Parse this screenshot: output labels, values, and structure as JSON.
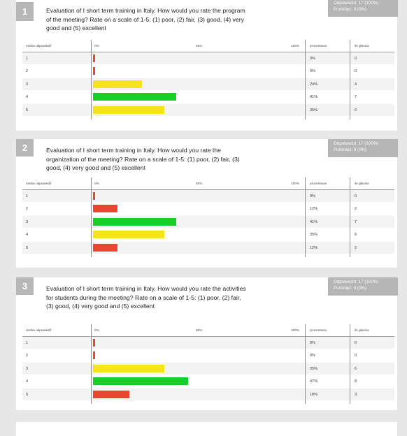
{
  "colors": {
    "poor": "#e8462e",
    "fair": "#f5e31c",
    "good": "#18cf28"
  },
  "header": {
    "answer": "Jedna odpowiedź",
    "zero": "0%",
    "fifty": "50%",
    "hundred": "100%",
    "percent": "procentowo",
    "votes": "ile głosów"
  },
  "questions": [
    {
      "number": "1",
      "text": "Evaluation of I short term training in Italy. How would you rate the program of the meeting? Rate on a scale of 1-5: (1) poor, (2) fair, (3) good, (4) very good and (5) excellent",
      "answered": "Odpowiedzi: 17 (100%)",
      "skipped": "Pominięć: 0 (0%)",
      "rows": [
        {
          "label": "1",
          "percent": "0%",
          "count": "0",
          "fraction": 0.0,
          "color": "poor"
        },
        {
          "label": "2",
          "percent": "0%",
          "count": "0",
          "fraction": 0.0,
          "color": "poor"
        },
        {
          "label": "3",
          "percent": "24%",
          "count": "4",
          "fraction": 0.24,
          "color": "fair"
        },
        {
          "label": "4",
          "percent": "41%",
          "count": "7",
          "fraction": 0.41,
          "color": "good"
        },
        {
          "label": "5",
          "percent": "35%",
          "count": "6",
          "fraction": 0.35,
          "color": "fair"
        }
      ]
    },
    {
      "number": "2",
      "text": "Evaluation of I short term training in Italy. How would you rate the organization of the meeting? Rate on a scale of 1-5: (1) poor, (2) fair, (3) good, (4) very good and (5) excellent",
      "answered": "Odpowiedzi: 17 (100%)",
      "skipped": "Pominięć: 0 (0%)",
      "rows": [
        {
          "label": "1",
          "percent": "0%",
          "count": "0",
          "fraction": 0.0,
          "color": "poor"
        },
        {
          "label": "2",
          "percent": "12%",
          "count": "2",
          "fraction": 0.12,
          "color": "poor"
        },
        {
          "label": "3",
          "percent": "41%",
          "count": "7",
          "fraction": 0.41,
          "color": "good"
        },
        {
          "label": "4",
          "percent": "35%",
          "count": "6",
          "fraction": 0.35,
          "color": "fair"
        },
        {
          "label": "5",
          "percent": "12%",
          "count": "2",
          "fraction": 0.12,
          "color": "poor"
        }
      ]
    },
    {
      "number": "3",
      "text": "Evaluation of I short term training in Italy. How would you rate the activities for students during the meeting? Rate on a scale of 1-5: (1) poor, (2) fair, (3) good, (4) very good and (5) excellent",
      "answered": "Odpowiedzi: 17 (100%)",
      "skipped": "Pominięć: 0 (0%)",
      "rows": [
        {
          "label": "1",
          "percent": "0%",
          "count": "0",
          "fraction": 0.0,
          "color": "poor"
        },
        {
          "label": "2",
          "percent": "0%",
          "count": "0",
          "fraction": 0.0,
          "color": "poor"
        },
        {
          "label": "3",
          "percent": "35%",
          "count": "6",
          "fraction": 0.35,
          "color": "fair"
        },
        {
          "label": "4",
          "percent": "47%",
          "count": "8",
          "fraction": 0.47,
          "color": "good"
        },
        {
          "label": "5",
          "percent": "18%",
          "count": "3",
          "fraction": 0.18,
          "color": "poor"
        }
      ]
    }
  ]
}
